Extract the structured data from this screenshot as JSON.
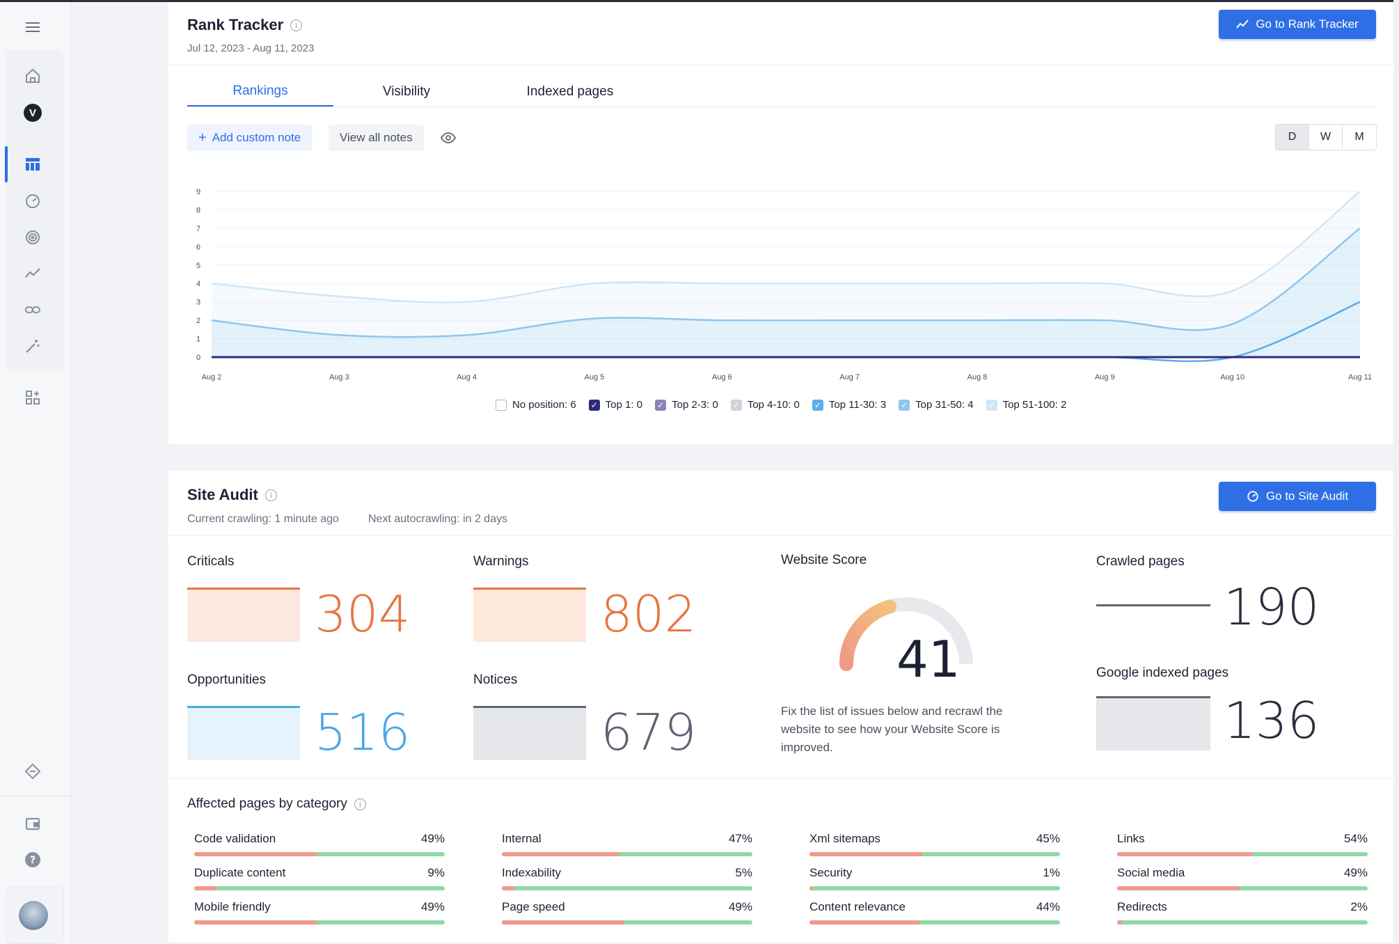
{
  "sidebar": {
    "items": [
      {
        "name": "menu-icon"
      },
      {
        "name": "home-icon"
      },
      {
        "name": "brand-logo",
        "label": "V"
      },
      {
        "name": "dashboard-icon"
      },
      {
        "name": "speedometer-icon"
      },
      {
        "name": "target-icon"
      },
      {
        "name": "trend-icon"
      },
      {
        "name": "link-icon"
      },
      {
        "name": "magic-wand-icon"
      },
      {
        "name": "apps-icon"
      },
      {
        "name": "diamond-icon"
      },
      {
        "name": "wallet-icon"
      },
      {
        "name": "help-icon"
      }
    ]
  },
  "rank_tracker": {
    "title": "Rank Tracker",
    "date_range": "Jul 12, 2023 - Aug 11, 2023",
    "go_button": "Go to Rank Tracker",
    "tabs": [
      "Rankings",
      "Visibility",
      "Indexed pages"
    ],
    "active_tab": "Rankings",
    "add_note": "Add custom note",
    "view_notes": "View all notes",
    "period_options": [
      "D",
      "W",
      "M"
    ],
    "active_period": "D"
  },
  "chart_data": {
    "type": "area",
    "x": [
      "Aug 2",
      "Aug 3",
      "Aug 4",
      "Aug 5",
      "Aug 6",
      "Aug 7",
      "Aug 8",
      "Aug 9",
      "Aug 10",
      "Aug 11"
    ],
    "yticks": [
      "0",
      "1",
      "2",
      "3",
      "4",
      "5",
      "6",
      "7",
      "8",
      "9"
    ],
    "ylim": [
      0,
      9
    ],
    "series": [
      {
        "name": "Top 51-100",
        "color": "#cfe6f7",
        "values": [
          4,
          3.3,
          3,
          4,
          4,
          4,
          4,
          4,
          3.6,
          9
        ]
      },
      {
        "name": "Top 31-50",
        "color": "#8ec7ec",
        "values": [
          2,
          1.2,
          1.2,
          2.1,
          2,
          2,
          2,
          2,
          1.8,
          7
        ]
      },
      {
        "name": "Top 11-30",
        "color": "#5aaee6",
        "values": [
          0,
          0,
          0,
          0,
          0,
          0,
          0,
          0,
          0,
          3
        ]
      },
      {
        "name": "Top 1",
        "color": "#2d2a7a",
        "values": [
          0,
          0,
          0,
          0,
          0,
          0,
          0,
          0,
          0,
          0
        ]
      }
    ],
    "legend": [
      {
        "label": "No position: 6",
        "checked": false,
        "color": "#ffffff"
      },
      {
        "label": "Top 1: 0",
        "checked": true,
        "color": "#2d2a7a"
      },
      {
        "label": "Top 2-3: 0",
        "checked": true,
        "color": "#8a82b8"
      },
      {
        "label": "Top 4-10: 0",
        "checked": true,
        "color": "#cfd3da"
      },
      {
        "label": "Top 11-30: 3",
        "checked": true,
        "color": "#5aaee6"
      },
      {
        "label": "Top 31-50: 4",
        "checked": true,
        "color": "#8ec7ec"
      },
      {
        "label": "Top 51-100: 2",
        "checked": true,
        "color": "#cfe6f7"
      }
    ]
  },
  "site_audit": {
    "title": "Site Audit",
    "crawling": "Current crawling: 1 minute ago",
    "next_crawl": "Next autocrawling: in 2 days",
    "go_button": "Go to Site Audit",
    "criticals": {
      "label": "Criticals",
      "value": "304",
      "color": "#e8743f",
      "fill": "#fbe9e1"
    },
    "warnings": {
      "label": "Warnings",
      "value": "802",
      "color": "#e8743f",
      "fill": "#fde9dc"
    },
    "opportunities": {
      "label": "Opportunities",
      "value": "516",
      "color": "#4aa8e8",
      "fill": "#e6f3fc"
    },
    "notices": {
      "label": "Notices",
      "value": "679",
      "color": "#5d6473",
      "fill": "#e6e7ea"
    },
    "website_score": {
      "label": "Website Score",
      "value": "41",
      "percent": 41,
      "hint": "Fix the list of issues below and recrawl the website to see how your Website Score is improved."
    },
    "crawled_pages": {
      "label": "Crawled pages",
      "value": "190"
    },
    "google_indexed": {
      "label": "Google indexed pages",
      "value": "136"
    },
    "categories_title": "Affected pages by category",
    "categories": [
      {
        "name": "Code validation",
        "pct": "49%",
        "v": 49
      },
      {
        "name": "Internal",
        "pct": "47%",
        "v": 47
      },
      {
        "name": "Xml sitemaps",
        "pct": "45%",
        "v": 45
      },
      {
        "name": "Links",
        "pct": "54%",
        "v": 54
      },
      {
        "name": "Duplicate content",
        "pct": "9%",
        "v": 9
      },
      {
        "name": "Indexability",
        "pct": "5%",
        "v": 5
      },
      {
        "name": "Security",
        "pct": "1%",
        "v": 1
      },
      {
        "name": "Social media",
        "pct": "49%",
        "v": 49
      },
      {
        "name": "Mobile friendly",
        "pct": "49%",
        "v": 49
      },
      {
        "name": "Page speed",
        "pct": "49%",
        "v": 49
      },
      {
        "name": "Content relevance",
        "pct": "44%",
        "v": 44
      },
      {
        "name": "Redirects",
        "pct": "2%",
        "v": 2
      }
    ]
  }
}
